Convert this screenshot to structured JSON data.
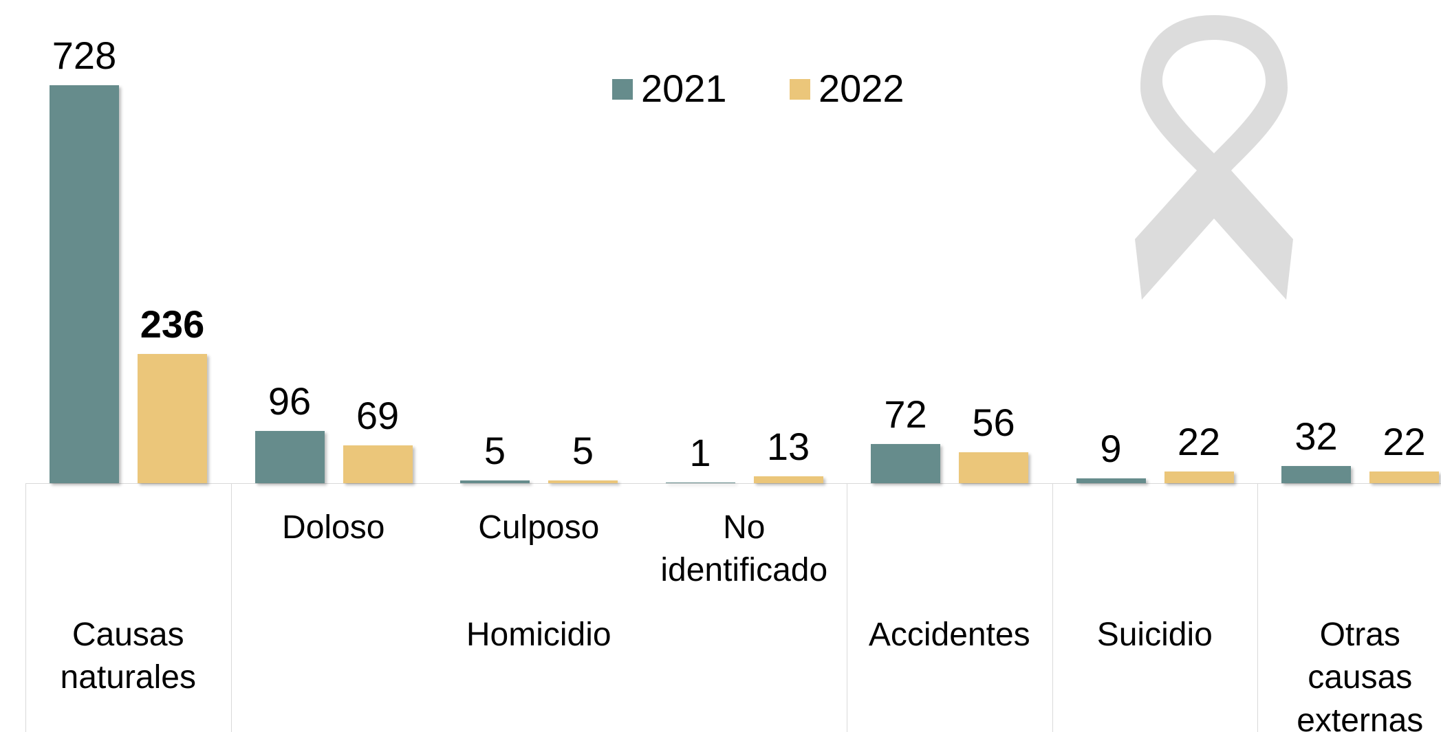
{
  "chart_data": {
    "type": "bar",
    "categories": [
      null,
      "Doloso",
      "Culposo",
      "No identificado",
      null,
      null,
      null
    ],
    "groups": [
      {
        "label": "Causas naturales",
        "size": 1
      },
      {
        "label": "Homicidio",
        "size": 3
      },
      {
        "label": "Accidentes",
        "size": 1
      },
      {
        "label": "Suicidio",
        "size": 1
      },
      {
        "label": "Otras causas externas",
        "size": 1
      }
    ],
    "series": [
      {
        "name": "2021",
        "color": "#668c8c",
        "values": [
          728,
          96,
          5,
          1,
          72,
          9,
          32
        ]
      },
      {
        "name": "2022",
        "color": "#ebc67a",
        "values": [
          236,
          69,
          5,
          13,
          56,
          22,
          22
        ]
      }
    ],
    "highlight": {
      "series": 1,
      "index": 0
    },
    "legend": "top"
  }
}
